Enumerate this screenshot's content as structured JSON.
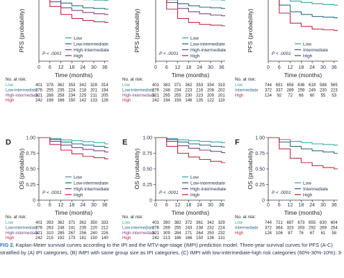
{
  "chart_data": [
    {
      "panel": "",
      "type": "line",
      "ylabel": "PFS (probability)",
      "xlabel": "Time (months)",
      "x": [
        0,
        6,
        12,
        18,
        24,
        30,
        36
      ],
      "ylim": [
        0,
        1
      ],
      "xlim": [
        0,
        38
      ],
      "ticks_y": [],
      "p_value": "P < .0001",
      "series": [
        {
          "name": "Low",
          "color": "#3aa6a3",
          "values": [
            1.0,
            0.965,
            0.945,
            0.93,
            0.92,
            0.915,
            0.91
          ]
        },
        {
          "name": "Low-intermediate",
          "color": "#2a6d80",
          "values": [
            1.0,
            0.93,
            0.87,
            0.83,
            0.8,
            0.79,
            0.78
          ]
        },
        {
          "name": "High-intermediate",
          "color": "#7b3f86",
          "values": [
            1.0,
            0.89,
            0.8,
            0.76,
            0.73,
            0.71,
            0.7
          ]
        },
        {
          "name": "High",
          "color": "#c0283f",
          "values": [
            1.0,
            0.82,
            0.7,
            0.64,
            0.61,
            0.59,
            0.58
          ]
        }
      ],
      "risk": {
        "title": "No. at risk:",
        "times": [
          0,
          6,
          12,
          18,
          24,
          30,
          36
        ],
        "rows": [
          {
            "name": "Low",
            "values": [
              "401",
              "378",
              "362",
              "353",
              "342",
              "328",
              "314"
            ]
          },
          {
            "name": "Low-intermediate",
            "values": [
              "276",
              "255",
              "235",
              "224",
              "218",
              "201",
              "194"
            ]
          },
          {
            "name": "High-intermediate",
            "values": [
              "321",
              "288",
              "258",
              "234",
              "225",
              "211",
              "205"
            ]
          },
          {
            "name": "High",
            "values": [
              "242",
              "199",
              "166",
              "150",
              "142",
              "133",
              "128"
            ]
          }
        ]
      }
    },
    {
      "panel": "",
      "type": "line",
      "ylabel": "PFS (probability)",
      "xlabel": "Time (months)",
      "x": [
        0,
        6,
        12,
        18,
        24,
        30,
        36
      ],
      "ylim": [
        0,
        1
      ],
      "xlim": [
        0,
        38
      ],
      "ticks_y": [],
      "p_value": "P < .0001",
      "series": [
        {
          "name": "Low",
          "color": "#3aa6a3",
          "values": [
            1.0,
            0.965,
            0.945,
            0.935,
            0.925,
            0.92,
            0.915
          ]
        },
        {
          "name": "Low-intermediate",
          "color": "#2a6d80",
          "values": [
            1.0,
            0.92,
            0.86,
            0.83,
            0.81,
            0.8,
            0.79
          ]
        },
        {
          "name": "High-intermediate",
          "color": "#7b3f86",
          "values": [
            1.0,
            0.88,
            0.79,
            0.74,
            0.71,
            0.69,
            0.68
          ]
        },
        {
          "name": "High",
          "color": "#c0283f",
          "values": [
            1.0,
            0.78,
            0.64,
            0.58,
            0.55,
            0.54,
            0.53
          ]
        }
      ],
      "risk": {
        "title": "No. at risk:",
        "times": [
          0,
          6,
          12,
          18,
          24,
          30,
          36
        ],
        "rows": [
          {
            "name": "Low",
            "values": [
              "401",
              "383",
              "371",
              "362",
              "353",
              "334",
              "319"
            ]
          },
          {
            "name": "Low-intermediate",
            "values": [
              "276",
              "248",
              "234",
              "223",
              "216",
              "208",
              "202"
            ]
          },
          {
            "name": "High-intermediate",
            "values": [
              "321",
              "295",
              "255",
              "230",
              "223",
              "209",
              "201"
            ]
          },
          {
            "name": "High",
            "values": [
              "242",
              "194",
              "159",
              "146",
              "135",
              "122",
              "119"
            ]
          }
        ]
      }
    },
    {
      "panel": "",
      "type": "line",
      "ylabel": "PFS (probability)",
      "xlabel": "Time (months)",
      "x": [
        0,
        6,
        12,
        18,
        24,
        30,
        36
      ],
      "ylim": [
        0,
        1
      ],
      "xlim": [
        0,
        38
      ],
      "ticks_y": [],
      "p_value": "P < .0001",
      "series": [
        {
          "name": "Low",
          "color": "#3aa6a3",
          "values": [
            1.0,
            0.94,
            0.9,
            0.88,
            0.86,
            0.85,
            0.84
          ]
        },
        {
          "name": "Intermediate",
          "color": "#2a6d80",
          "values": [
            1.0,
            0.84,
            0.74,
            0.7,
            0.67,
            0.66,
            0.65
          ]
        },
        {
          "name": "High",
          "color": "#c0283f",
          "values": [
            1.0,
            0.72,
            0.57,
            0.52,
            0.48,
            0.47,
            0.46
          ]
        }
      ],
      "risk": {
        "title": "No. at risk:",
        "times": [
          0,
          6,
          12,
          18,
          24,
          30,
          36
        ],
        "rows": [
          {
            "name": "Low",
            "values": [
              "744",
              "691",
              "658",
              "636",
              "619",
              "588",
              "565"
            ]
          },
          {
            "name": "Intermediate",
            "values": [
              "372",
              "337",
              "289",
              "259",
              "249",
              "230",
              "223"
            ]
          },
          {
            "name": "High",
            "values": [
              "124",
              "92",
              "72",
              "66",
              "60",
              "55",
              "53"
            ]
          }
        ]
      }
    },
    {
      "panel": "D",
      "type": "line",
      "ylabel": "OS (probability)",
      "xlabel": "Time (months)",
      "x": [
        0,
        6,
        12,
        18,
        24,
        30,
        36
      ],
      "ylim": [
        0,
        1
      ],
      "xlim": [
        0,
        38
      ],
      "ticks_y": [
        "1.00",
        "0.75",
        "0.50",
        "0.25",
        "0"
      ],
      "p_value": "P < .0001",
      "series": [
        {
          "name": "Low",
          "color": "#3aa6a3",
          "values": [
            1.0,
            0.985,
            0.965,
            0.95,
            0.935,
            0.92,
            0.9
          ]
        },
        {
          "name": "Low-intermediate",
          "color": "#2a6d80",
          "values": [
            1.0,
            0.97,
            0.93,
            0.9,
            0.88,
            0.86,
            0.84
          ]
        },
        {
          "name": "High-intermediate",
          "color": "#7b3f86",
          "values": [
            1.0,
            0.94,
            0.88,
            0.84,
            0.81,
            0.79,
            0.77
          ]
        },
        {
          "name": "High",
          "color": "#c0283f",
          "values": [
            1.0,
            0.89,
            0.8,
            0.74,
            0.7,
            0.68,
            0.66
          ]
        }
      ],
      "risk": {
        "title": "No. at risk:",
        "times": [
          0,
          6,
          12,
          18,
          24,
          30,
          36
        ],
        "rows": [
          {
            "name": "Low",
            "values": [
              "401",
              "393",
              "382",
              "371",
              "362",
              "350",
              "333"
            ]
          },
          {
            "name": "Low-intermediate",
            "values": [
              "276",
              "263",
              "248",
              "241",
              "235",
              "220",
              "212"
            ]
          },
          {
            "name": "High-intermediate",
            "values": [
              "321",
              "310",
              "285",
              "267",
              "256",
              "240",
              "226"
            ]
          },
          {
            "name": "High",
            "values": [
              "242",
              "215",
              "192",
              "173",
              "161",
              "150",
              "140"
            ]
          }
        ]
      }
    },
    {
      "panel": "E",
      "type": "line",
      "ylabel": "OS (probability)",
      "xlabel": "Time (months)",
      "x": [
        0,
        6,
        12,
        18,
        24,
        30,
        36
      ],
      "ylim": [
        0,
        1
      ],
      "xlim": [
        0,
        38
      ],
      "ticks_y": [
        "1.00",
        "0.75",
        "0.50",
        "0.25",
        "0"
      ],
      "p_value": "P < .0001",
      "series": [
        {
          "name": "Low",
          "color": "#3aa6a3",
          "values": [
            1.0,
            0.985,
            0.965,
            0.95,
            0.94,
            0.93,
            0.92
          ]
        },
        {
          "name": "Low-intermediate",
          "color": "#2a6d80",
          "values": [
            1.0,
            0.97,
            0.93,
            0.9,
            0.88,
            0.86,
            0.85
          ]
        },
        {
          "name": "High-intermediate",
          "color": "#7b3f86",
          "values": [
            1.0,
            0.94,
            0.87,
            0.83,
            0.8,
            0.78,
            0.76
          ]
        },
        {
          "name": "High",
          "color": "#c0283f",
          "values": [
            1.0,
            0.86,
            0.75,
            0.69,
            0.65,
            0.62,
            0.6
          ]
        }
      ],
      "risk": {
        "title": "No. at risk:",
        "times": [
          0,
          6,
          12,
          18,
          24,
          30,
          36
        ],
        "rows": [
          {
            "name": "Low",
            "values": [
              "401",
              "390",
              "382",
              "372",
              "361",
              "342",
              "329"
            ]
          },
          {
            "name": "Low-intermediate",
            "values": [
              "276",
              "269",
              "255",
              "243",
              "238",
              "232",
              "224"
            ]
          },
          {
            "name": "High-intermediate",
            "values": [
              "321",
              "309",
              "284",
              "271",
              "264",
              "250",
              "232"
            ]
          },
          {
            "name": "High",
            "values": [
              "242",
              "213",
              "186",
              "166",
              "150",
              "136",
              "131"
            ]
          }
        ]
      }
    },
    {
      "panel": "F",
      "type": "line",
      "ylabel": "OS (probability)",
      "xlabel": "Time (months)",
      "x": [
        0,
        6,
        12,
        18,
        24,
        30,
        36
      ],
      "ylim": [
        0,
        1
      ],
      "xlim": [
        0,
        38
      ],
      "ticks_y": [
        "1.00",
        "0.75",
        "0.50",
        "0.25",
        "0"
      ],
      "p_value": "P < .0001",
      "series": [
        {
          "name": "Low",
          "color": "#3aa6a3",
          "values": [
            1.0,
            0.97,
            0.94,
            0.92,
            0.9,
            0.89,
            0.88
          ]
        },
        {
          "name": "Intermediate",
          "color": "#2a6d80",
          "values": [
            1.0,
            0.93,
            0.86,
            0.82,
            0.79,
            0.77,
            0.75
          ]
        },
        {
          "name": "High",
          "color": "#c0283f",
          "values": [
            1.0,
            0.82,
            0.67,
            0.6,
            0.55,
            0.52,
            0.5
          ]
        }
      ],
      "risk": {
        "title": "No. at risk:",
        "times": [
          0,
          6,
          12,
          18,
          24,
          30,
          36
        ],
        "rows": [
          {
            "name": "Low",
            "values": [
              "744",
              "721",
              "697",
              "673",
              "655",
              "630",
              "604"
            ]
          },
          {
            "name": "Intermediate",
            "values": [
              "372",
              "364",
              "323",
              "303",
              "292",
              "269",
              "254"
            ]
          },
          {
            "name": "High",
            "values": [
              "124",
              "106",
              "87",
              "76",
              "67",
              "61",
              "58"
            ]
          }
        ]
      }
    }
  ],
  "caption": {
    "label": "FIG 2.",
    "line1": "Kaplan-Meier survival curves according to the IPI and the MTV-age-stage (IMPI) prediction model. Three-year survival curves for PFS (A-C)",
    "line2": "stratified by (A) IPI categories, (B) IMPI with same group size as IPI categories, (C) IMPI with low-intermediate-high risk categories (60%-30%-10%); 3-"
  }
}
